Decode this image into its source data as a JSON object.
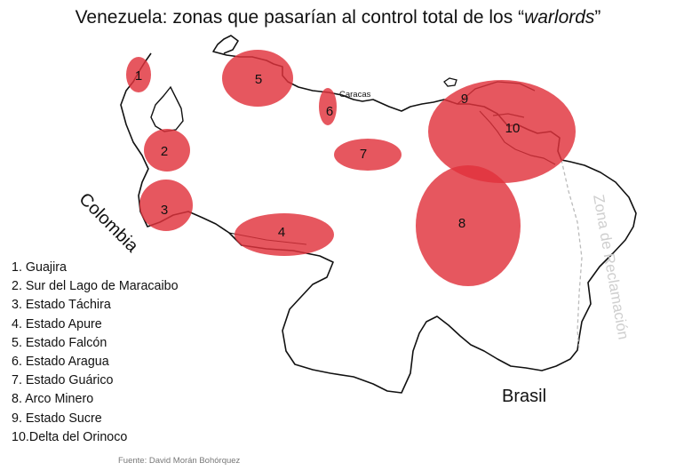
{
  "title": {
    "prefix": "Venezuela: zonas que pasarían al control total de los “",
    "italic": "warlords",
    "suffix": "”"
  },
  "map": {
    "city_label": "Caracas",
    "country_labels": {
      "colombia": "Colombia",
      "brasil": "Brasil",
      "zona_reclamacion": "Zona de Reclamación"
    },
    "zones": [
      {
        "number": "1",
        "name": "Guajira"
      },
      {
        "number": "2",
        "name": "Sur del Lago de Maracaibo"
      },
      {
        "number": "3",
        "name": "Estado Táchira"
      },
      {
        "number": "4",
        "name": "Estado Apure"
      },
      {
        "number": "5",
        "name": "Estado Falcón"
      },
      {
        "number": "6",
        "name": "Estado Aragua"
      },
      {
        "number": "7",
        "name": "Estado Guárico"
      },
      {
        "number": "8",
        "name": "Arco Minero"
      },
      {
        "number": "9",
        "name": "Estado Sucre"
      },
      {
        "number": "10",
        "name": "Delta del Orinoco"
      }
    ],
    "zone_color": "#e0323c"
  },
  "legend": [
    "1. Guajira",
    "2. Sur del Lago de Maracaibo",
    "3. Estado Táchira",
    "4. Estado Apure",
    "5. Estado Falcón",
    "6. Estado Aragua",
    "7. Estado Guárico",
    "8. Arco Minero",
    "9. Estado Sucre",
    "10.Delta del Orinoco"
  ],
  "source": "Fuente: David Morán Bohórquez"
}
